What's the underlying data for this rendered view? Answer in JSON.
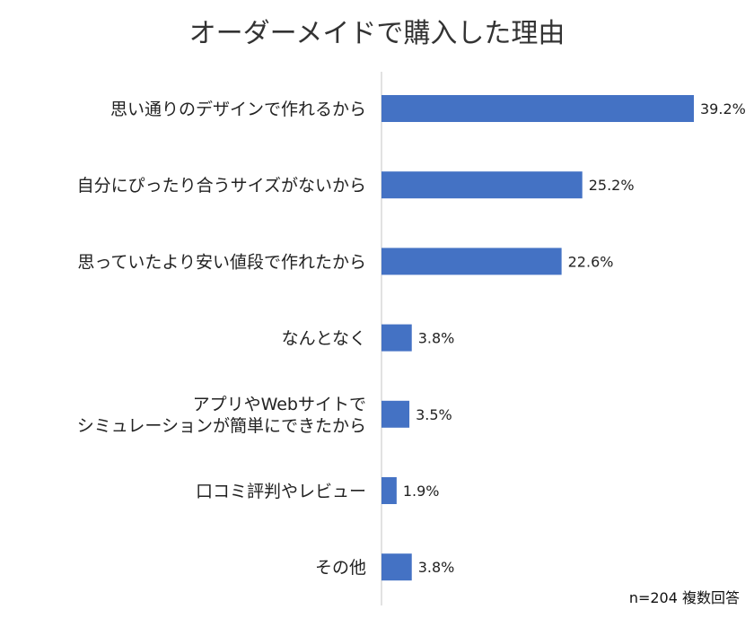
{
  "chart_data": {
    "type": "bar",
    "orientation": "horizontal",
    "title": "オーダーメイドで購入した理由",
    "categories": [
      [
        "思い通りのデザインで作れるから"
      ],
      [
        "自分にぴったり合うサイズがないから"
      ],
      [
        "思っていたより安い値段で作れたから"
      ],
      [
        "なんとなく"
      ],
      [
        "アプリやWebサイトで",
        "シミュレーションが簡単にできたから"
      ],
      [
        "口コミ評判やレビュー"
      ],
      [
        "その他"
      ]
    ],
    "values": [
      39.2,
      25.2,
      22.6,
      3.8,
      3.5,
      1.9,
      3.8
    ],
    "value_labels": [
      "39.2%",
      "25.2%",
      "22.6%",
      "3.8%",
      "3.5%",
      "1.9%",
      "3.8%"
    ],
    "unit": "%",
    "xlim": [
      0,
      40
    ],
    "bar_color": "#4472C4",
    "axis_color": "#d9d9d9",
    "grid": false,
    "legend": "none"
  },
  "note": "n=204 複数回答"
}
